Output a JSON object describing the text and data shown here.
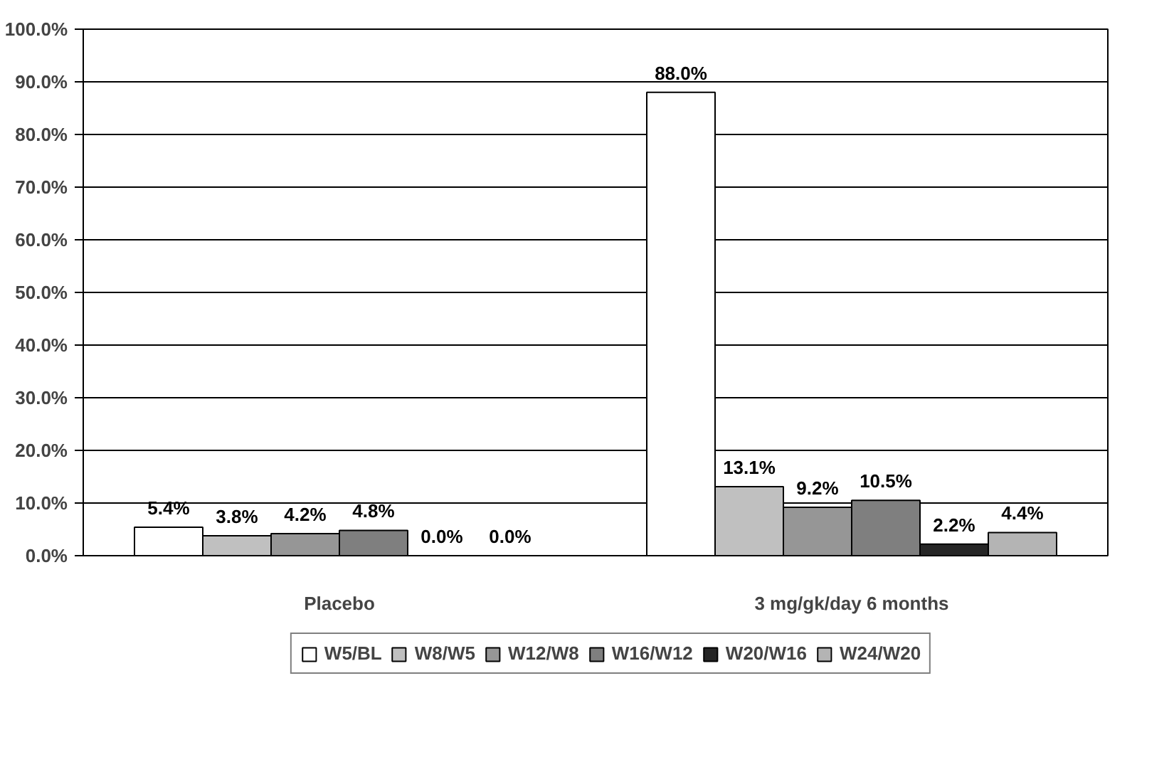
{
  "chart_data": {
    "type": "bar",
    "categories": [
      "Placebo",
      "3 mg/gk/day 6 months"
    ],
    "ylim": [
      0,
      100
    ],
    "yticks": [
      {
        "value": 0,
        "label": "0.0%"
      },
      {
        "value": 10,
        "label": "10.0%"
      },
      {
        "value": 20,
        "label": "20.0%"
      },
      {
        "value": 30,
        "label": "30.0%"
      },
      {
        "value": 40,
        "label": "40.0%"
      },
      {
        "value": 50,
        "label": "50.0%"
      },
      {
        "value": 60,
        "label": "60.0%"
      },
      {
        "value": 70,
        "label": "70.0%"
      },
      {
        "value": 80,
        "label": "80.0%"
      },
      {
        "value": 90,
        "label": "90.0%"
      },
      {
        "value": 100,
        "label": "100.0%"
      }
    ],
    "grid": "y",
    "legend": "bottom",
    "series": [
      {
        "name": "W5/BL",
        "color": "#ffffff",
        "values": [
          5.4,
          88.0
        ],
        "value_labels": [
          "5.4%",
          "88.0%"
        ]
      },
      {
        "name": "W8/W5",
        "color": "#c0c0c0",
        "values": [
          3.8,
          13.1
        ],
        "value_labels": [
          "3.8%",
          "13.1%"
        ]
      },
      {
        "name": "W12/W8",
        "color": "#969696",
        "values": [
          4.2,
          9.2
        ],
        "value_labels": [
          "4.2%",
          "9.2%"
        ]
      },
      {
        "name": "W16/W12",
        "color": "#7f7f7f",
        "values": [
          4.8,
          10.5
        ],
        "value_labels": [
          "4.8%",
          "10.5%"
        ]
      },
      {
        "name": "W20/W16",
        "color": "#262626",
        "values": [
          0.0,
          2.2
        ],
        "value_labels": [
          "0.0%",
          "2.2%"
        ]
      },
      {
        "name": "W24/W20",
        "color": "#b4b4b4",
        "values": [
          0.0,
          4.4
        ],
        "value_labels": [
          "0.0%",
          "4.4%"
        ]
      }
    ]
  }
}
